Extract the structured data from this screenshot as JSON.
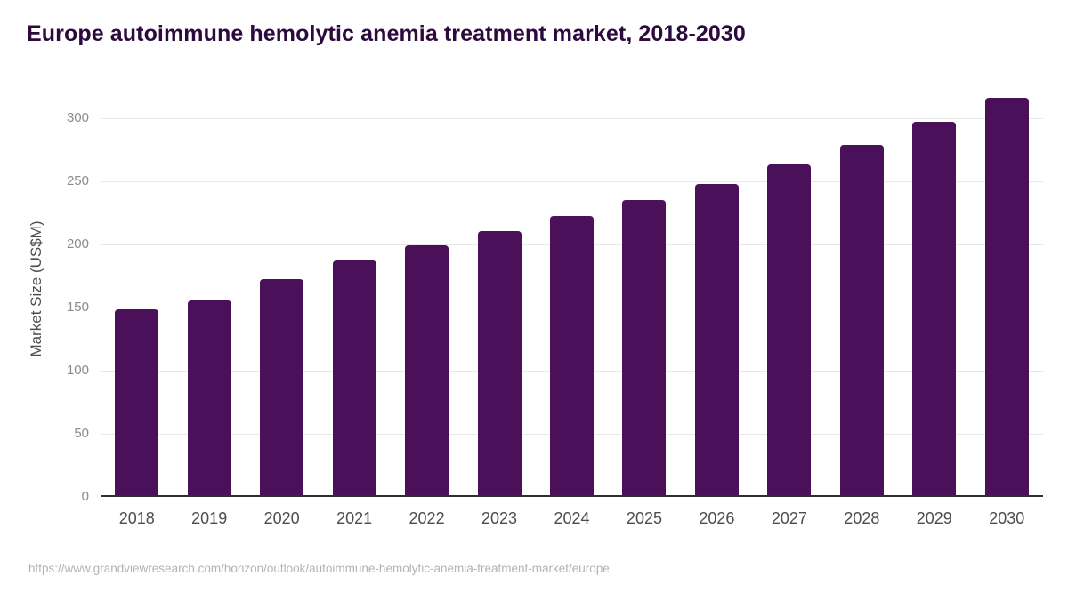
{
  "page": {
    "source_url": "https://www.grandviewresearch.com/horizon/outlook/autoimmune-hemolytic-anemia-treatment-market/europe"
  },
  "colors": {
    "background": "#ffffff",
    "bar": "#4b105a",
    "title": "#2d0a3e",
    "axis_line": "#2e2e2e",
    "gridline": "#e8e8e8",
    "ytick_label": "#8c8c8c",
    "xtick_label": "#4d4d4d",
    "axis_title": "#4d4d4d",
    "source_text": "#b3b3b3"
  },
  "chart_data": {
    "type": "bar",
    "title": "Europe autoimmune hemolytic anemia treatment market, 2018-2030",
    "ylabel": "Market Size (US$M)",
    "xlabel": "",
    "categories": [
      "2018",
      "2019",
      "2020",
      "2021",
      "2022",
      "2023",
      "2024",
      "2025",
      "2026",
      "2027",
      "2028",
      "2029",
      "2030"
    ],
    "values": [
      147,
      154,
      171,
      186,
      198,
      209,
      221,
      234,
      247,
      262,
      278,
      296,
      315
    ],
    "yticks": [
      0,
      50,
      100,
      150,
      200,
      250,
      300
    ],
    "ylim": [
      0,
      327
    ],
    "grid": "horizontal",
    "legend": "none",
    "bar_corner_radius_px": 4
  }
}
